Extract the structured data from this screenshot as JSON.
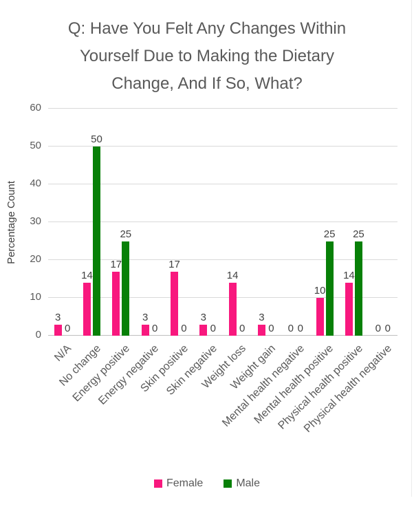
{
  "header": {
    "title_lines": [
      "Q: Have You Felt Any Changes Within",
      "Yourself Due to Making the Dietary",
      "Change, And If So, What?"
    ]
  },
  "chart_data": {
    "type": "bar",
    "title": "Q: Have You Felt Any Changes Within Yourself Due to Making the Dietary Change, And If So, What?",
    "xlabel": "",
    "ylabel": "Percentage Count",
    "ylim": [
      0,
      60
    ],
    "yticks": [
      0,
      10,
      20,
      30,
      40,
      50,
      60
    ],
    "grid": true,
    "data_labels": true,
    "legend_position": "bottom",
    "categories": [
      "N/A",
      "No change",
      "Energy positive",
      "Energy negative",
      "Skin positive",
      "Skin negative",
      "Weight loss",
      "Weight gain",
      "Mental health negative",
      "Mental health positive",
      "Physical health positive",
      "Physical health negative"
    ],
    "series": [
      {
        "name": "Female",
        "color": "#F8187E",
        "values": [
          3,
          14,
          17,
          3,
          17,
          3,
          14,
          3,
          0,
          10,
          14,
          0
        ]
      },
      {
        "name": "Male",
        "color": "#078007",
        "values": [
          0,
          50,
          25,
          0,
          0,
          0,
          0,
          0,
          0,
          25,
          25,
          0
        ]
      }
    ]
  },
  "colors": {
    "background": "#FFFFFF",
    "title_text": "#595959",
    "axis_text": "#595959",
    "data_label_text": "#404040",
    "gridline": "#D9D9D9",
    "axis_line": "#BFBFBF",
    "frame_border": "#ECECEC",
    "female_bar": "#F8187E",
    "male_bar": "#078007"
  }
}
